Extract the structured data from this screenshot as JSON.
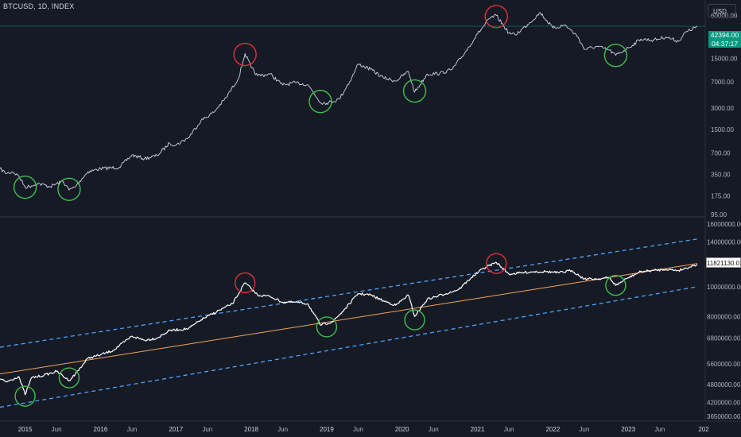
{
  "header": {
    "symbol_title": "BTCUSD, 1D, INDEX",
    "currency": "USD"
  },
  "price_badge": {
    "price": "42394.00",
    "countdown": "04:37:17"
  },
  "indicator_badge": {
    "value": "11821130.01"
  },
  "colors": {
    "background": "#161a25",
    "price_line": "#d1d4dc",
    "regression": "#f5a35a",
    "channel": "#4da3ff",
    "top_marker": "#e0313b",
    "bottom_marker": "#3fbf4f",
    "badge": "#089981"
  },
  "chart_data": [
    {
      "type": "line",
      "scale": "log",
      "series": [
        {
          "points": [
            [
              "2014-09",
              420
            ],
            [
              "2014-10",
              360
            ],
            [
              "2014-11",
              380
            ],
            [
              "2014-12",
              330
            ],
            [
              "2015-01",
              230
            ],
            [
              "2015-02",
              240
            ],
            [
              "2015-03",
              260
            ],
            [
              "2015-05",
              235
            ],
            [
              "2015-07",
              280
            ],
            [
              "2015-08",
              210
            ],
            [
              "2015-09",
              235
            ],
            [
              "2015-10",
              300
            ],
            [
              "2015-11",
              380
            ],
            [
              "2016-01",
              420
            ],
            [
              "2016-04",
              440
            ],
            [
              "2016-06",
              650
            ],
            [
              "2016-08",
              580
            ],
            [
              "2016-10",
              640
            ],
            [
              "2016-12",
              960
            ],
            [
              "2017-01",
              900
            ],
            [
              "2017-03",
              1150
            ],
            [
              "2017-05",
              2000
            ],
            [
              "2017-07",
              2600
            ],
            [
              "2017-09",
              4200
            ],
            [
              "2017-11",
              8000
            ],
            [
              "2017-12",
              17500
            ],
            [
              "2018-01",
              11000
            ],
            [
              "2018-02",
              8500
            ],
            [
              "2018-04",
              9000
            ],
            [
              "2018-06",
              6300
            ],
            [
              "2018-08",
              6800
            ],
            [
              "2018-10",
              6400
            ],
            [
              "2018-12",
              3600
            ],
            [
              "2019-01",
              3500
            ],
            [
              "2019-03",
              4000
            ],
            [
              "2019-05",
              8000
            ],
            [
              "2019-06",
              12500
            ],
            [
              "2019-08",
              10500
            ],
            [
              "2019-10",
              8000
            ],
            [
              "2019-12",
              7200
            ],
            [
              "2020-02",
              9800
            ],
            [
              "2020-03",
              5000
            ],
            [
              "2020-05",
              9000
            ],
            [
              "2020-07",
              9200
            ],
            [
              "2020-09",
              10500
            ],
            [
              "2020-11",
              18000
            ],
            [
              "2021-01",
              33000
            ],
            [
              "2021-03",
              55000
            ],
            [
              "2021-04",
              60000
            ],
            [
              "2021-06",
              34000
            ],
            [
              "2021-07",
              32000
            ],
            [
              "2021-09",
              45000
            ],
            [
              "2021-11",
              66000
            ],
            [
              "2022-01",
              40000
            ],
            [
              "2022-03",
              44000
            ],
            [
              "2022-05",
              30000
            ],
            [
              "2022-06",
              20000
            ],
            [
              "2022-08",
              22000
            ],
            [
              "2022-10",
              19500
            ],
            [
              "2022-11",
              16500
            ],
            [
              "2023-01",
              21000
            ],
            [
              "2023-03",
              28000
            ],
            [
              "2023-05",
              27000
            ],
            [
              "2023-07",
              30000
            ],
            [
              "2023-09",
              26000
            ],
            [
              "2023-10",
              34000
            ],
            [
              "2023-12",
              42394
            ]
          ]
        }
      ],
      "y_ticks": [
        "60000.00",
        "15000.00",
        "7000.00",
        "3000.00",
        "1500.00",
        "700.00",
        "350.00",
        "175.00",
        "95.00"
      ],
      "ylim": [
        95,
        85000
      ],
      "current_price_line": 42394,
      "markers": [
        {
          "kind": "bottom",
          "date": "2015-01",
          "value": 230
        },
        {
          "kind": "bottom",
          "date": "2015-08",
          "value": 215
        },
        {
          "kind": "top",
          "date": "2017-12",
          "value": 17000
        },
        {
          "kind": "bottom",
          "date": "2018-12",
          "value": 3700
        },
        {
          "kind": "bottom",
          "date": "2020-03",
          "value": 5200
        },
        {
          "kind": "top",
          "date": "2021-04",
          "value": 58000
        },
        {
          "kind": "bottom",
          "date": "2022-11",
          "value": 16500
        }
      ]
    },
    {
      "type": "line",
      "series": [
        {
          "points": [
            [
              "2014-09",
              5000000
            ],
            [
              "2014-10",
              4900000
            ],
            [
              "2014-12",
              5100000
            ],
            [
              "2015-01",
              4450000
            ],
            [
              "2015-02",
              5050000
            ],
            [
              "2015-04",
              5150000
            ],
            [
              "2015-06",
              5300000
            ],
            [
              "2015-08",
              4950000
            ],
            [
              "2015-09",
              5200000
            ],
            [
              "2015-11",
              5850000
            ],
            [
              "2016-01",
              6000000
            ],
            [
              "2016-03",
              6200000
            ],
            [
              "2016-06",
              6900000
            ],
            [
              "2016-08",
              6700000
            ],
            [
              "2016-10",
              6800000
            ],
            [
              "2016-12",
              7200000
            ],
            [
              "2017-03",
              7300000
            ],
            [
              "2017-05",
              7800000
            ],
            [
              "2017-08",
              8400000
            ],
            [
              "2017-10",
              8800000
            ],
            [
              "2017-12",
              10300000
            ],
            [
              "2018-02",
              9400000
            ],
            [
              "2018-04",
              9300000
            ],
            [
              "2018-06",
              8900000
            ],
            [
              "2018-08",
              8900000
            ],
            [
              "2018-10",
              8800000
            ],
            [
              "2018-12",
              7500000
            ],
            [
              "2019-02",
              7700000
            ],
            [
              "2019-04",
              8500000
            ],
            [
              "2019-06",
              9500000
            ],
            [
              "2019-08",
              9400000
            ],
            [
              "2019-10",
              9000000
            ],
            [
              "2019-12",
              8700000
            ],
            [
              "2020-02",
              9400000
            ],
            [
              "2020-03",
              8000000
            ],
            [
              "2020-05",
              9100000
            ],
            [
              "2020-08",
              9500000
            ],
            [
              "2020-10",
              9800000
            ],
            [
              "2020-12",
              10700000
            ],
            [
              "2021-02",
              11500000
            ],
            [
              "2021-04",
              12000000
            ],
            [
              "2021-06",
              11000000
            ],
            [
              "2021-08",
              11100000
            ],
            [
              "2021-10",
              11200000
            ],
            [
              "2021-12",
              11200000
            ],
            [
              "2022-02",
              11100000
            ],
            [
              "2022-04",
              11300000
            ],
            [
              "2022-06",
              10600000
            ],
            [
              "2022-08",
              10600000
            ],
            [
              "2022-10",
              10700000
            ],
            [
              "2022-11",
              10100000
            ],
            [
              "2023-01",
              10700000
            ],
            [
              "2023-03",
              11200000
            ],
            [
              "2023-05",
              11300000
            ],
            [
              "2023-07",
              11400000
            ],
            [
              "2023-09",
              11300000
            ],
            [
              "2023-12",
              11821130
            ]
          ]
        }
      ],
      "regression_line": {
        "start": [
          "2014-09",
          5200000
        ],
        "end": [
          "2023-12",
          11900000
        ]
      },
      "upper_band": {
        "start": [
          "2014-09",
          6350000
        ],
        "end": [
          "2023-12",
          14300000
        ]
      },
      "lower_band": {
        "start": [
          "2014-09",
          4050000
        ],
        "end": [
          "2023-12",
          10000000
        ]
      },
      "y_ticks": [
        "16000000.00",
        "14000000.00",
        "12000000.00",
        "10000000.00",
        "8000000.00",
        "6800000.00",
        "5600000.00",
        "4800000.00",
        "4200000.00",
        "3650000.00"
      ],
      "ylim": [
        3650000,
        16000000
      ],
      "markers": [
        {
          "kind": "bottom",
          "date": "2015-01",
          "value": 4400000
        },
        {
          "kind": "bottom",
          "date": "2015-08",
          "value": 5050000
        },
        {
          "kind": "top",
          "date": "2017-12",
          "value": 10300000
        },
        {
          "kind": "bottom",
          "date": "2019-01",
          "value": 7400000
        },
        {
          "kind": "bottom",
          "date": "2020-03",
          "value": 7800000
        },
        {
          "kind": "top",
          "date": "2021-04",
          "value": 11900000
        },
        {
          "kind": "bottom",
          "date": "2022-11",
          "value": 10100000
        }
      ]
    }
  ],
  "x_axis": {
    "ticks": [
      {
        "label": "2015",
        "date": "2015-01",
        "year": true
      },
      {
        "label": "Jun",
        "date": "2015-06",
        "year": false
      },
      {
        "label": "2016",
        "date": "2016-01",
        "year": true
      },
      {
        "label": "Jun",
        "date": "2016-06",
        "year": false
      },
      {
        "label": "2017",
        "date": "2017-01",
        "year": true
      },
      {
        "label": "Jun",
        "date": "2017-06",
        "year": false
      },
      {
        "label": "2018",
        "date": "2018-01",
        "year": true
      },
      {
        "label": "Jun",
        "date": "2018-06",
        "year": false
      },
      {
        "label": "2019",
        "date": "2019-01",
        "year": true
      },
      {
        "label": "Jun",
        "date": "2019-06",
        "year": false
      },
      {
        "label": "2020",
        "date": "2020-01",
        "year": true
      },
      {
        "label": "Jun",
        "date": "2020-06",
        "year": false
      },
      {
        "label": "2021",
        "date": "2021-01",
        "year": true
      },
      {
        "label": "Jun",
        "date": "2021-06",
        "year": false
      },
      {
        "label": "2022",
        "date": "2022-01",
        "year": true
      },
      {
        "label": "Jun",
        "date": "2022-06",
        "year": false
      },
      {
        "label": "2023",
        "date": "2023-01",
        "year": true
      },
      {
        "label": "Jun",
        "date": "2023-06",
        "year": false
      },
      {
        "label": "202",
        "date": "2024-01",
        "year": true
      }
    ]
  }
}
